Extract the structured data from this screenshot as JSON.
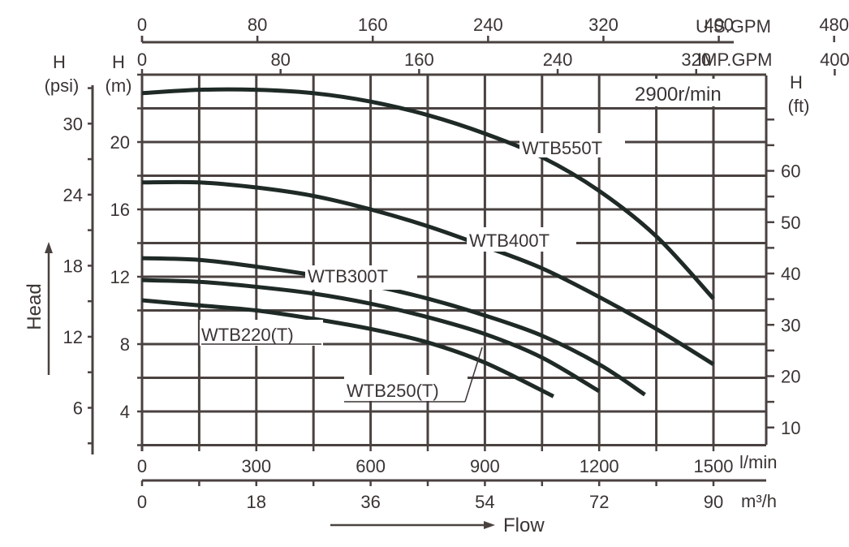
{
  "chart_data": {
    "type": "line",
    "title": "",
    "speed_label": "2900r/min",
    "xlabel": "Flow",
    "ylabel": "Head",
    "x_unit": "l/min",
    "y_unit": "m",
    "xlim": [
      0,
      1640
    ],
    "ylim": [
      2,
      24
    ],
    "grid": true,
    "x_axes": [
      {
        "name": "U.S.GPM",
        "position": "top-outer",
        "ticks": [
          0,
          80,
          160,
          240,
          320,
          400,
          480
        ]
      },
      {
        "name": "IMP.GPM",
        "position": "top-inner",
        "ticks": [
          0,
          80,
          160,
          240,
          320,
          400
        ]
      },
      {
        "name": "l/min",
        "position": "bottom-inner",
        "ticks": [
          0,
          300,
          600,
          900,
          1200,
          1500
        ]
      },
      {
        "name": "m³/h",
        "position": "bottom-outer",
        "ticks": [
          0,
          18,
          36,
          54,
          72,
          90
        ]
      }
    ],
    "y_axes": [
      {
        "name": "H (psi)",
        "position": "left-outer",
        "ticks": [
          6,
          12,
          18,
          24,
          30
        ]
      },
      {
        "name": "H (m)",
        "position": "left-inner",
        "ticks": [
          4,
          8,
          12,
          16,
          20
        ]
      },
      {
        "name": "H (ft)",
        "position": "right",
        "ticks": [
          10,
          20,
          30,
          40,
          50,
          60
        ]
      }
    ],
    "series": [
      {
        "name": "WTB550T",
        "x": [
          0,
          150,
          300,
          450,
          600,
          750,
          900,
          1050,
          1200,
          1350,
          1500
        ],
        "y": [
          22.9,
          23.1,
          23.1,
          22.9,
          22.4,
          21.6,
          20.5,
          19.1,
          17.1,
          14.4,
          10.7
        ]
      },
      {
        "name": "WTB400T",
        "x": [
          0,
          150,
          300,
          450,
          600,
          750,
          900,
          1050,
          1200,
          1350,
          1500
        ],
        "y": [
          17.6,
          17.6,
          17.3,
          16.8,
          16.0,
          15.0,
          13.8,
          12.5,
          10.8,
          8.9,
          6.8
        ]
      },
      {
        "name": "WTB300T",
        "x": [
          0,
          150,
          300,
          450,
          600,
          750,
          900,
          1050,
          1200,
          1320
        ],
        "y": [
          13.1,
          13.0,
          12.6,
          12.1,
          11.5,
          10.7,
          9.7,
          8.5,
          6.8,
          5.0
        ]
      },
      {
        "name": "WTB250(T)",
        "x": [
          0,
          150,
          300,
          450,
          600,
          750,
          900,
          1050,
          1200
        ],
        "y": [
          11.8,
          11.7,
          11.4,
          11.0,
          10.4,
          9.6,
          8.6,
          7.2,
          5.2
        ]
      },
      {
        "name": "WTB220(T)",
        "x": [
          0,
          150,
          300,
          450,
          600,
          750,
          900,
          1080
        ],
        "y": [
          10.6,
          10.3,
          10.0,
          9.5,
          8.9,
          8.1,
          6.9,
          4.9
        ]
      }
    ]
  },
  "labels": {
    "us_gpm": "U.S.GPM",
    "imp_gpm": "IMP.GPM",
    "l_min": "l/min",
    "m3h": "m³/h",
    "h": "H",
    "psi": "(psi)",
    "m": "(m)",
    "ft": "(ft)",
    "head": "Head",
    "flow": "Flow",
    "speed": "2900r/min",
    "wtb550": "WTB550T",
    "wtb400": "WTB400T",
    "wtb300": "WTB300T",
    "wtb250": "WTB250(T)",
    "wtb220": "WTB220(T)"
  }
}
